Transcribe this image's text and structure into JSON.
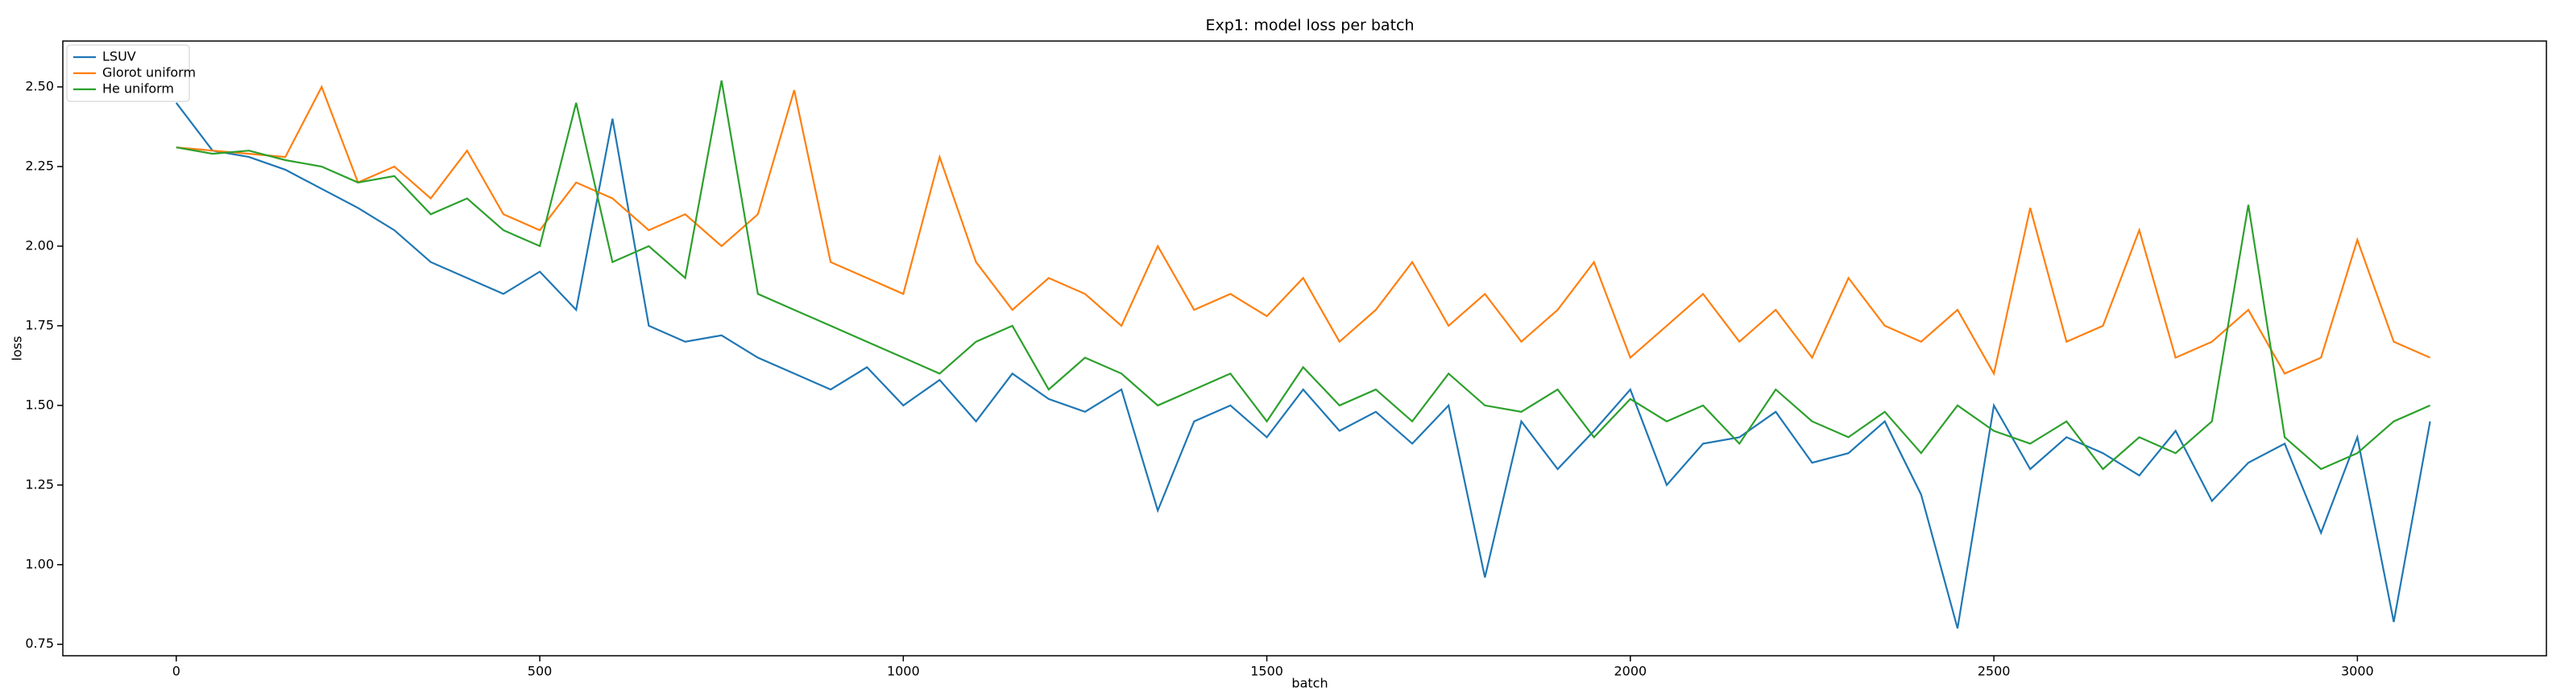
{
  "chart_data": {
    "type": "line",
    "title": "Exp1: model loss per batch",
    "xlabel": "batch",
    "ylabel": "loss",
    "x": [
      0,
      50,
      100,
      150,
      200,
      250,
      300,
      350,
      400,
      450,
      500,
      550,
      600,
      650,
      700,
      750,
      800,
      850,
      900,
      950,
      1000,
      1050,
      1100,
      1150,
      1200,
      1250,
      1300,
      1350,
      1400,
      1450,
      1500,
      1550,
      1600,
      1650,
      1700,
      1750,
      1800,
      1850,
      1900,
      1950,
      2000,
      2050,
      2100,
      2150,
      2200,
      2250,
      2300,
      2350,
      2400,
      2450,
      2500,
      2550,
      2600,
      2650,
      2700,
      2750,
      2800,
      2850,
      2900,
      2950,
      3000,
      3050,
      3100
    ],
    "series": [
      {
        "name": "LSUV",
        "color": "#1f77b4",
        "values": [
          2.45,
          2.3,
          2.28,
          2.24,
          2.18,
          2.12,
          2.05,
          1.95,
          1.9,
          1.85,
          1.92,
          1.8,
          2.4,
          1.75,
          1.7,
          1.72,
          1.65,
          1.6,
          1.55,
          1.62,
          1.5,
          1.58,
          1.45,
          1.6,
          1.52,
          1.48,
          1.55,
          1.17,
          1.45,
          1.5,
          1.4,
          1.55,
          1.42,
          1.48,
          1.38,
          1.5,
          0.96,
          1.45,
          1.3,
          1.42,
          1.55,
          1.25,
          1.38,
          1.4,
          1.48,
          1.32,
          1.35,
          1.45,
          1.22,
          0.8,
          1.5,
          1.3,
          1.4,
          1.35,
          1.28,
          1.42,
          1.2,
          1.32,
          1.38,
          1.1,
          1.4,
          0.82,
          1.45
        ]
      },
      {
        "name": "Glorot uniform",
        "color": "#ff7f0e",
        "values": [
          2.31,
          2.3,
          2.29,
          2.28,
          2.5,
          2.2,
          2.25,
          2.15,
          2.3,
          2.1,
          2.05,
          2.2,
          2.15,
          2.05,
          2.1,
          2.0,
          2.1,
          2.49,
          1.95,
          1.9,
          1.85,
          2.28,
          1.95,
          1.8,
          1.9,
          1.85,
          1.75,
          2.0,
          1.8,
          1.85,
          1.78,
          1.9,
          1.7,
          1.8,
          1.95,
          1.75,
          1.85,
          1.7,
          1.8,
          1.95,
          1.65,
          1.75,
          1.85,
          1.7,
          1.8,
          1.65,
          1.9,
          1.75,
          1.7,
          1.8,
          1.6,
          2.12,
          1.7,
          1.75,
          2.05,
          1.65,
          1.7,
          1.8,
          1.6,
          1.65,
          2.02,
          1.7,
          1.65
        ]
      },
      {
        "name": "He uniform",
        "color": "#2ca02c",
        "values": [
          2.31,
          2.29,
          2.3,
          2.27,
          2.25,
          2.2,
          2.22,
          2.1,
          2.15,
          2.05,
          2.0,
          2.45,
          1.95,
          2.0,
          1.9,
          2.52,
          1.85,
          1.8,
          1.75,
          1.7,
          1.65,
          1.6,
          1.7,
          1.75,
          1.55,
          1.65,
          1.6,
          1.5,
          1.55,
          1.6,
          1.45,
          1.62,
          1.5,
          1.55,
          1.45,
          1.6,
          1.5,
          1.48,
          1.55,
          1.4,
          1.52,
          1.45,
          1.5,
          1.38,
          1.55,
          1.45,
          1.4,
          1.48,
          1.35,
          1.5,
          1.42,
          1.38,
          1.45,
          1.3,
          1.4,
          1.35,
          1.45,
          2.13,
          1.4,
          1.3,
          1.35,
          1.45,
          1.5
        ]
      }
    ],
    "xlim": [
      -156,
      3260
    ],
    "xticks": [
      0,
      500,
      1000,
      1500,
      2000,
      2500,
      3000
    ],
    "ylim": [
      0.714,
      2.644
    ],
    "yticks": [
      0.75,
      {
        "value": 1.0,
        "label": "1.00"
      },
      1.25,
      {
        "value": 1.5,
        "label": "1.50"
      },
      1.75,
      {
        "value": 2.0,
        "label": "2.00"
      },
      2.25,
      {
        "value": 2.5,
        "label": "2.50"
      }
    ],
    "legend": "upper left",
    "grid": false
  }
}
